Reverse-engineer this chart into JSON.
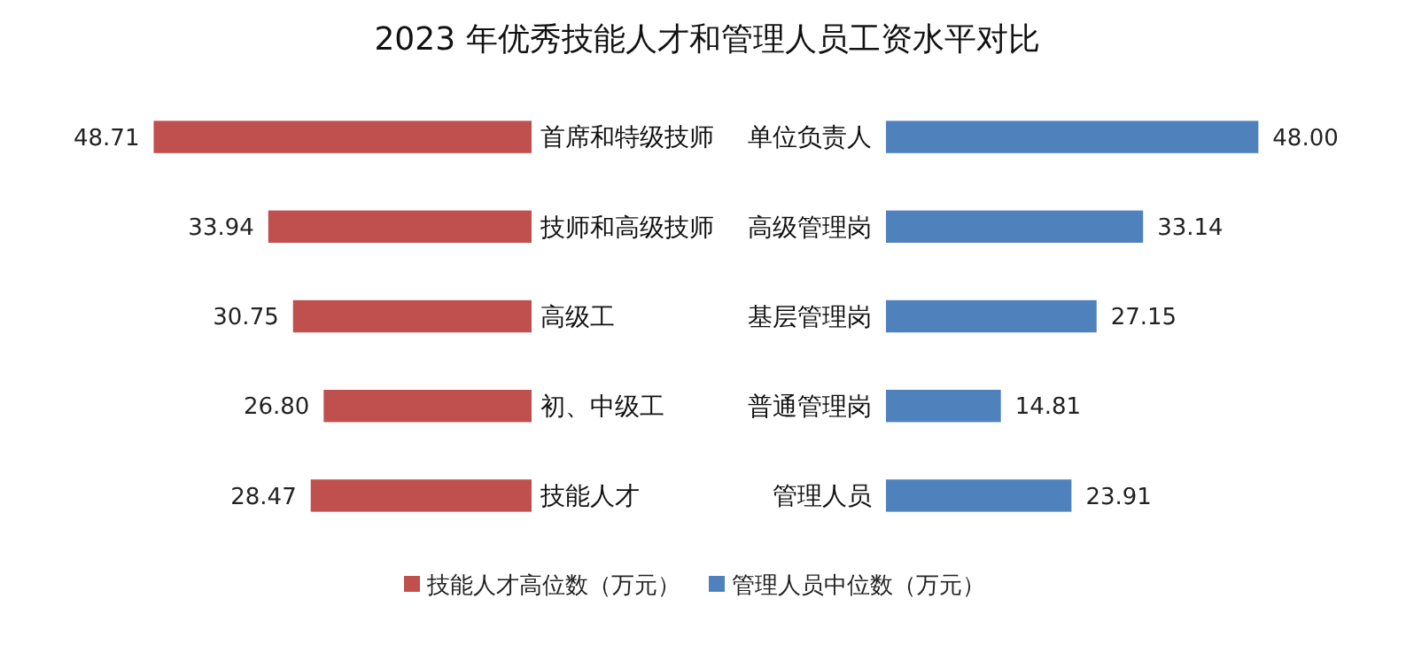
{
  "chart_data": [
    {
      "type": "bar",
      "orientation": "horizontal",
      "title": "2023 年优秀技能人才和管理人员工资水平对比",
      "categories": [
        "首席和特级技师",
        "技师和高级技师",
        "高级工",
        "初、中级工",
        "技能人才"
      ],
      "series": [
        {
          "name": "技能人才高位数（万元）",
          "color": "#c0504d",
          "values": [
            48.71,
            33.94,
            30.75,
            26.8,
            28.47
          ],
          "value_labels": [
            "48.71",
            "33.94",
            "30.75",
            "26.80",
            "28.47"
          ]
        }
      ],
      "tick_labels": "y",
      "legend": "bottom"
    },
    {
      "type": "bar",
      "orientation": "horizontal",
      "categories": [
        "单位负责人",
        "高级管理岗",
        "基层管理岗",
        "普通管理岗",
        "管理人员"
      ],
      "series": [
        {
          "name": "管理人员中位数（万元）",
          "color": "#4f81bd",
          "values": [
            48,
            33.14,
            27.15,
            14.81,
            23.91
          ],
          "value_labels": [
            "48.00",
            "33.14",
            "27.15",
            "14.81",
            "23.91"
          ]
        }
      ],
      "tick_labels": "y",
      "legend": "bottom"
    }
  ]
}
